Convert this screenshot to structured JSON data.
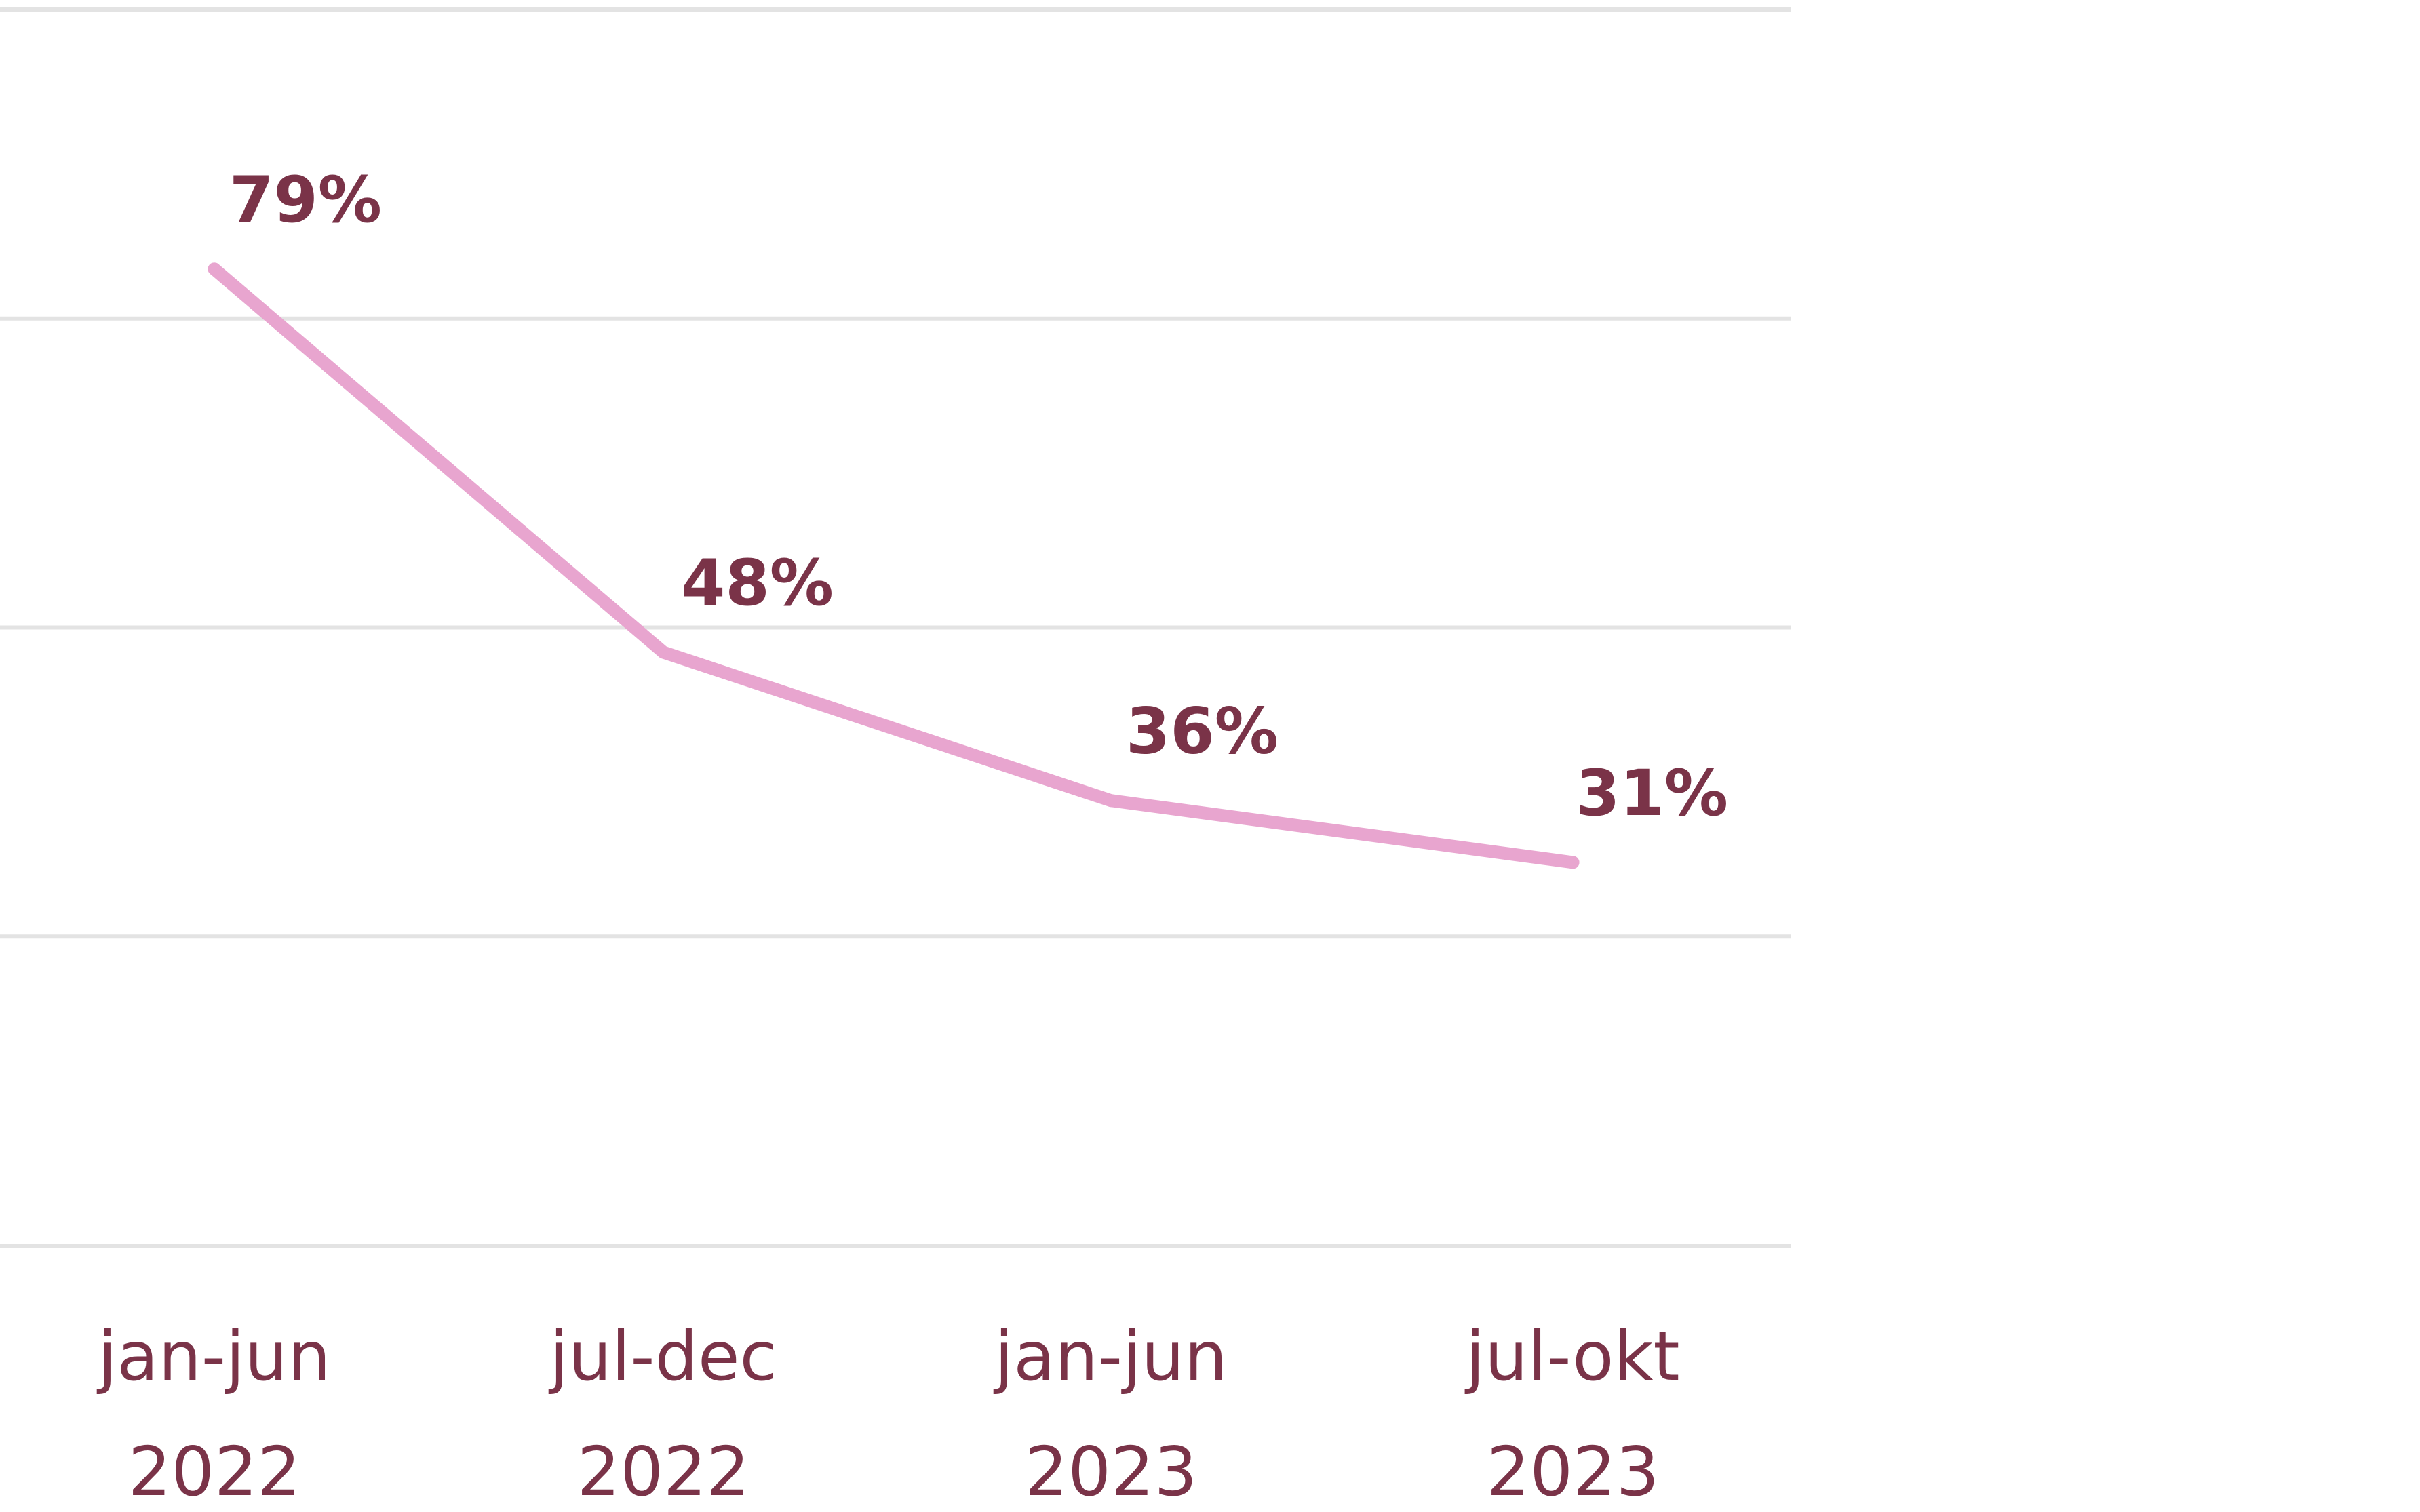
{
  "chart_data": {
    "type": "line",
    "categories": [
      [
        "jan-jun",
        "2022"
      ],
      [
        "jul-dec",
        "2022"
      ],
      [
        "jan-jun",
        "2023"
      ],
      [
        "jul-okt",
        "2023"
      ]
    ],
    "series": [
      {
        "values": [
          79,
          48,
          36,
          31
        ],
        "data_labels": [
          "79%",
          "48%",
          "36%",
          "31%"
        ],
        "color": "#e8a5cf"
      }
    ],
    "ylim": [
      0,
      100
    ],
    "y_grid_values": [
      0,
      25,
      50,
      75,
      100
    ],
    "grid": true,
    "title": "",
    "xlabel": "",
    "ylabel": "",
    "label_color": "#7a3348",
    "grid_color": "#e3e3e3"
  }
}
